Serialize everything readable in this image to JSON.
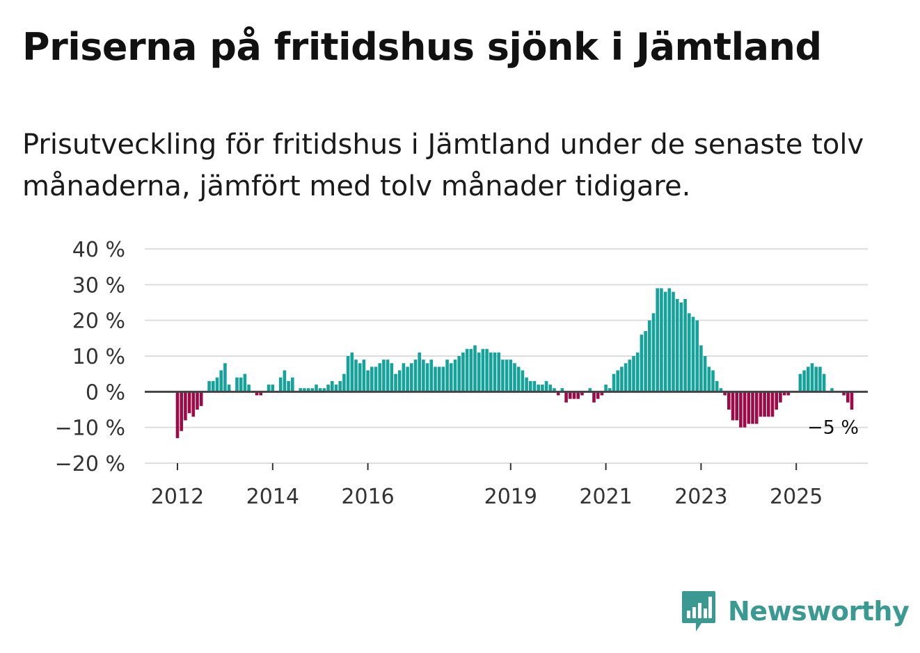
{
  "title": "Priserna på fritidshus sjönk i Jämtland",
  "subtitle": "Prisutveckling för fritidshus i Jämtland under de senaste tolv månaderna, jämfört med tolv månader tidigare.",
  "brand": {
    "name": "Newsworthy",
    "icon": "newsworthy-logo-icon",
    "color": "#3a9990"
  },
  "chart_data": {
    "type": "bar",
    "title": "Priserna på fritidshus sjönk i Jämtland",
    "ylabel": "",
    "xlabel": "",
    "ylim": [
      -20,
      40
    ],
    "yticks": [
      -20,
      -10,
      0,
      10,
      20,
      30,
      40
    ],
    "ytick_labels": [
      "−20 %",
      "−10 %",
      "0 %",
      "10 %",
      "20 %",
      "30 %",
      "40 %"
    ],
    "x_start": "2012-01",
    "xtick_labels": [
      {
        "label": "2012",
        "index": 0
      },
      {
        "label": "2014",
        "index": 24
      },
      {
        "label": "2016",
        "index": 48
      },
      {
        "label": "2019",
        "index": 84
      },
      {
        "label": "2021",
        "index": 108
      },
      {
        "label": "2023",
        "index": 132
      },
      {
        "label": "2025",
        "index": 156
      }
    ],
    "last_value_label": "−5 %",
    "colors": {
      "positive": "#14a39a",
      "negative": "#9c0a47",
      "zero_line": "#444444",
      "grid": "#dddddd"
    },
    "values": [
      -13,
      -11,
      -8,
      -6,
      -7,
      -5,
      -4,
      0,
      3,
      3,
      4,
      6,
      8,
      2,
      0,
      4,
      4,
      5,
      2,
      0,
      -1,
      -1,
      0,
      2,
      2,
      0,
      4,
      6,
      3,
      4,
      0,
      1,
      1,
      1,
      1,
      2,
      1,
      1,
      2,
      3,
      2,
      3,
      5,
      10,
      11,
      9,
      8,
      9,
      6,
      7,
      7,
      8,
      9,
      9,
      8,
      5,
      6,
      8,
      7,
      8,
      9,
      11,
      9,
      8,
      9,
      7,
      7,
      7,
      9,
      8,
      9,
      10,
      11,
      12,
      12,
      13,
      11,
      12,
      12,
      11,
      11,
      11,
      9,
      9,
      9,
      8,
      7,
      6,
      4,
      3,
      3,
      2,
      2,
      3,
      2,
      1,
      -1,
      1,
      -3,
      -2,
      -2,
      -2,
      -1,
      0,
      1,
      -3,
      -2,
      -1,
      2,
      1,
      5,
      6,
      7,
      8,
      9,
      10,
      11,
      16,
      17,
      20,
      22,
      29,
      29,
      28,
      29,
      28,
      26,
      25,
      26,
      22,
      21,
      20,
      13,
      10,
      7,
      6,
      3,
      1,
      -1,
      -5,
      -8,
      -8,
      -10,
      -10,
      -9,
      -9,
      -9,
      -7,
      -7,
      -7,
      -7,
      -5,
      -3,
      -1,
      -1,
      0,
      0,
      5,
      6,
      7,
      8,
      7,
      7,
      5,
      0,
      1,
      0,
      0,
      -1,
      -3,
      -5
    ]
  }
}
